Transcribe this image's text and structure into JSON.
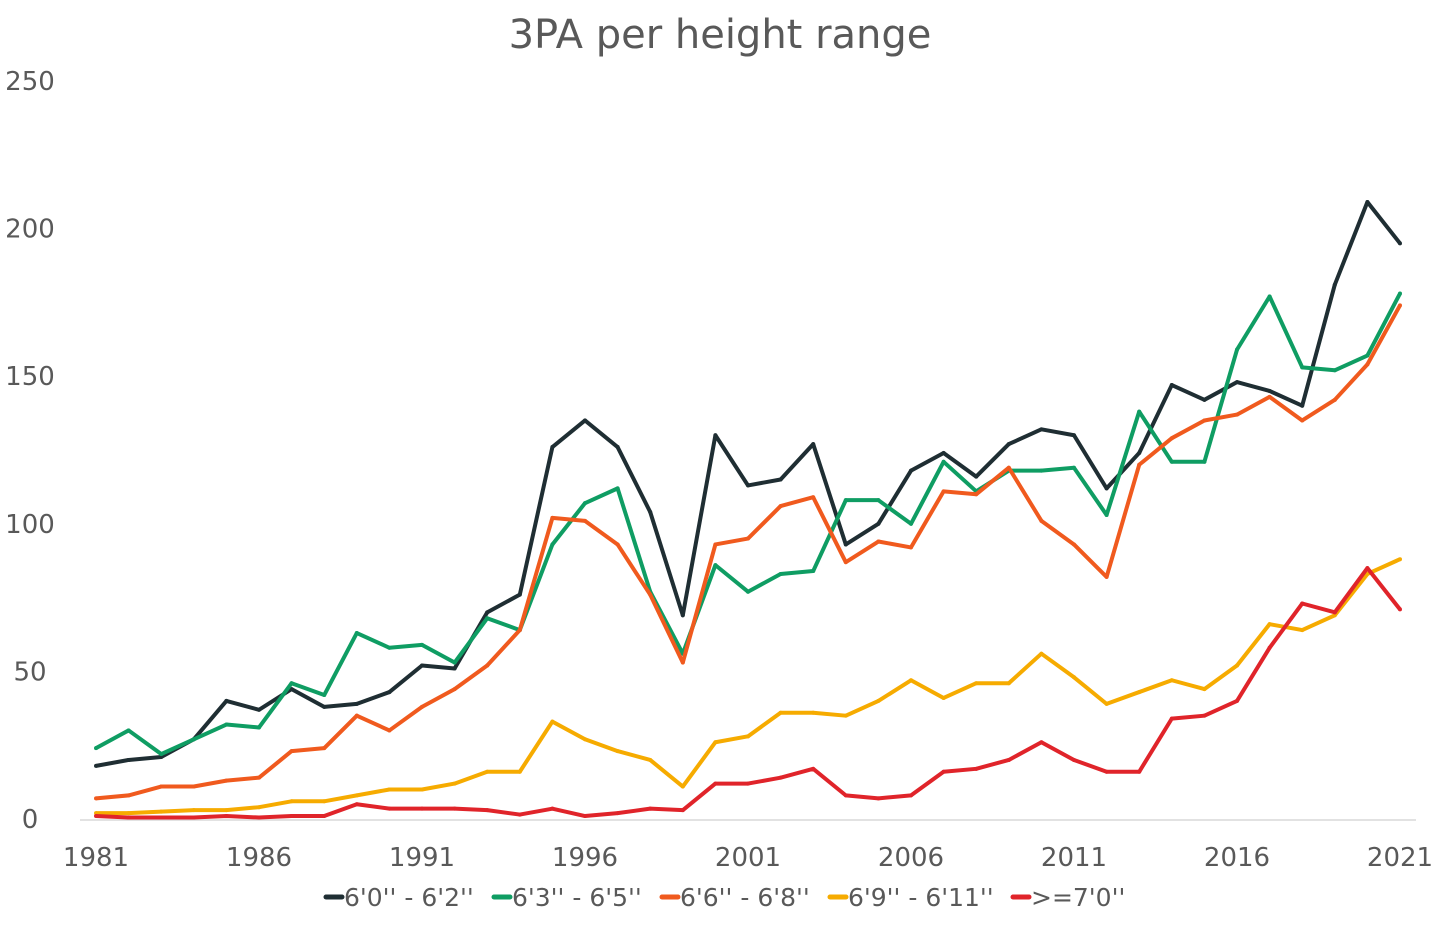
{
  "chart_data": {
    "type": "line",
    "title": "3PA per height range",
    "xlabel": "",
    "ylabel": "",
    "ylim": [
      0,
      250
    ],
    "yticks": [
      0,
      50,
      100,
      150,
      200,
      250
    ],
    "xlim": [
      1981,
      2021
    ],
    "xticks": [
      1981,
      1986,
      1991,
      1996,
      2001,
      2006,
      2011,
      2016,
      2021
    ],
    "grid": false,
    "legend": "bottom",
    "x": [
      1981,
      1982,
      1983,
      1984,
      1985,
      1986,
      1987,
      1988,
      1989,
      1990,
      1991,
      1992,
      1993,
      1994,
      1995,
      1996,
      1997,
      1998,
      1999,
      2000,
      2001,
      2002,
      2003,
      2004,
      2005,
      2006,
      2007,
      2008,
      2009,
      2010,
      2011,
      2012,
      2013,
      2014,
      2015,
      2016,
      2017,
      2018,
      2019,
      2020,
      2021
    ],
    "series": [
      {
        "name": "6'0'' - 6'2''",
        "color": "#1f2e33",
        "values": [
          18,
          20,
          21,
          27,
          40,
          37,
          44,
          38,
          39,
          43,
          52,
          51,
          70,
          76,
          126,
          135,
          126,
          104,
          69,
          130,
          113,
          115,
          127,
          93,
          100,
          118,
          124,
          116,
          127,
          132,
          130,
          112,
          124,
          147,
          142,
          148,
          145,
          140,
          181,
          209,
          195
        ]
      },
      {
        "name": "6'3'' - 6'5''",
        "color": "#0f9d63",
        "values": [
          24,
          30,
          22,
          27,
          32,
          31,
          46,
          42,
          63,
          58,
          59,
          53,
          68,
          64,
          93,
          107,
          112,
          77,
          56,
          86,
          77,
          83,
          84,
          108,
          108,
          100,
          121,
          111,
          118,
          118,
          119,
          103,
          138,
          121,
          121,
          159,
          177,
          153,
          152,
          157,
          178
        ]
      },
      {
        "name": "6'6'' - 6'8''",
        "color": "#f05a1e",
        "values": [
          7,
          8,
          11,
          11,
          13,
          14,
          23,
          24,
          35,
          30,
          38,
          44,
          52,
          64,
          102,
          101,
          93,
          76,
          53,
          93,
          95,
          106,
          109,
          87,
          94,
          92,
          111,
          110,
          119,
          101,
          93,
          82,
          120,
          129,
          135,
          137,
          143,
          135,
          142,
          154,
          174
        ]
      },
      {
        "name": "6'9'' - 6'11''",
        "color": "#f6ab00",
        "values": [
          2,
          2,
          2.5,
          3,
          3,
          4,
          6,
          6,
          8,
          10,
          10,
          12,
          16,
          16,
          33,
          27,
          23,
          20,
          11,
          26,
          28,
          36,
          36,
          35,
          40,
          47,
          41,
          46,
          46,
          56,
          48,
          39,
          43,
          47,
          44,
          52,
          66,
          64,
          69,
          83,
          88
        ]
      },
      {
        "name": ">=7'0''",
        "color": "#e0242a",
        "values": [
          1,
          0.5,
          0.5,
          0.5,
          1,
          0.5,
          1,
          1,
          5,
          3.5,
          3.5,
          3.5,
          3,
          1.5,
          3.5,
          1,
          2,
          3.5,
          3,
          12,
          12,
          14,
          17,
          8,
          7,
          8,
          16,
          17,
          20,
          26,
          20,
          16,
          16,
          34,
          35,
          40,
          58,
          73,
          70,
          85,
          71
        ]
      }
    ]
  }
}
